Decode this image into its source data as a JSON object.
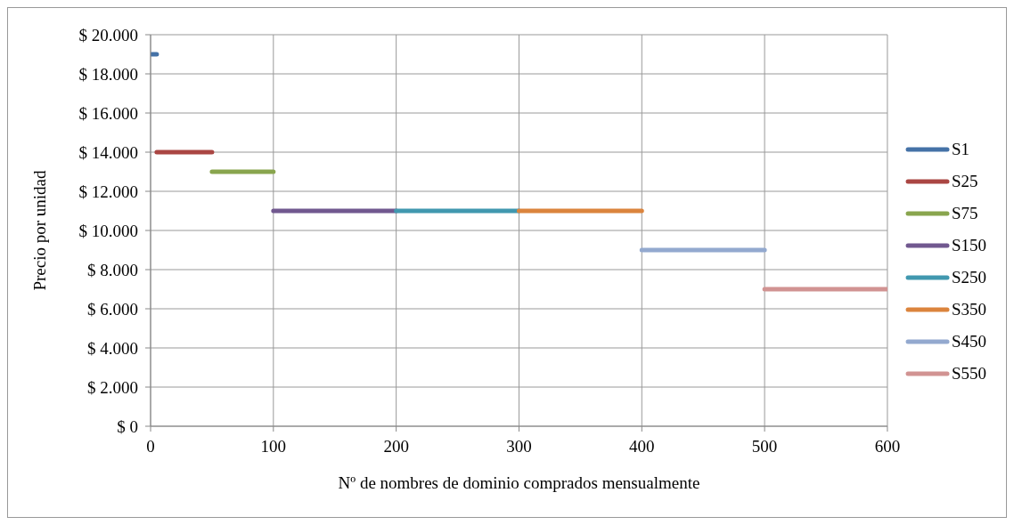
{
  "chart_data": {
    "type": "line",
    "xlabel": "Nº de nombres de dominio comprados  mensualmente",
    "ylabel": "Precio por unidad",
    "xlim": [
      0,
      600
    ],
    "xticks": [
      0,
      100,
      200,
      300,
      400,
      500,
      600
    ],
    "ylim": [
      0,
      20000
    ],
    "yticks": [
      {
        "value": 0,
        "label": "$ 0"
      },
      {
        "value": 2000,
        "label": "$ 2.000"
      },
      {
        "value": 4000,
        "label": "$ 4.000"
      },
      {
        "value": 6000,
        "label": "$ 6.000"
      },
      {
        "value": 8000,
        "label": "$ 8.000"
      },
      {
        "value": 10000,
        "label": "$ 10.000"
      },
      {
        "value": 12000,
        "label": "$ 12.000"
      },
      {
        "value": 14000,
        "label": "$ 14.000"
      },
      {
        "value": 16000,
        "label": "$ 16.000"
      },
      {
        "value": 18000,
        "label": "$ 18.000"
      },
      {
        "value": 20000,
        "label": "$ 20.000"
      }
    ],
    "grid": true,
    "legend": "right",
    "marker": "none",
    "line_style": "solid",
    "series": [
      {
        "name": "S1",
        "color": "#4572a7",
        "x": [
          1,
          5
        ],
        "values": [
          19000,
          19000
        ]
      },
      {
        "name": "S25",
        "color": "#aa4643",
        "x": [
          5,
          50
        ],
        "values": [
          14000,
          14000
        ]
      },
      {
        "name": "S75",
        "color": "#89a54e",
        "x": [
          50,
          100
        ],
        "values": [
          13000,
          13000
        ]
      },
      {
        "name": "S150",
        "color": "#71588f",
        "x": [
          100,
          200
        ],
        "values": [
          11000,
          11000
        ]
      },
      {
        "name": "S250",
        "color": "#4198af",
        "x": [
          200,
          300
        ],
        "values": [
          11000,
          11000
        ]
      },
      {
        "name": "S350",
        "color": "#db843d",
        "x": [
          300,
          400
        ],
        "values": [
          11000,
          11000
        ]
      },
      {
        "name": "S450",
        "color": "#93a9cf",
        "x": [
          400,
          500
        ],
        "values": [
          9000,
          9000
        ]
      },
      {
        "name": "S550",
        "color": "#d19392",
        "x": [
          500,
          600
        ],
        "values": [
          7000,
          7000
        ]
      }
    ]
  }
}
